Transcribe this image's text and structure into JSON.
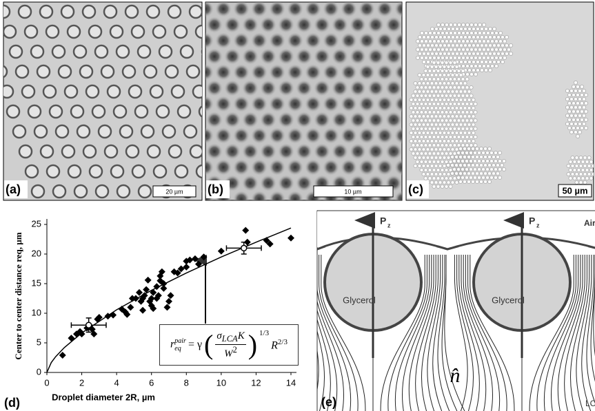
{
  "panels": {
    "a": {
      "label": "(a)",
      "scale": "20 µm"
    },
    "b": {
      "label": "(b)",
      "scale": "10 µm"
    },
    "c": {
      "label": "(c)",
      "scale": "50 µm"
    },
    "d": {
      "label": "(d)"
    },
    "e": {
      "label": "(e)",
      "p": "P",
      "z": "z",
      "air": "Air",
      "glycerol": "Glycerol",
      "n": "n̂",
      "lc": "LC"
    }
  },
  "formula": {
    "lhs": "r",
    "lhs_sub": "eq",
    "lhs_sup": "pair",
    "gamma": "= γ",
    "num": "σ",
    "num_sub": "LCA",
    "num_k": "K",
    "den": "W",
    "den_sup": "2",
    "exp": "1/3",
    "r": "R",
    "r_exp": "2/3"
  },
  "chart_data": {
    "type": "scatter",
    "x_label": "Droplet diameter 2R, µm",
    "y_label": "Center to center distance req, µm",
    "color": "#000000",
    "x": [
      0.9,
      1.4,
      1.7,
      1.9,
      2.0,
      2.3,
      2.6,
      2.7,
      2.9,
      3.0,
      3.5,
      3.8,
      4.3,
      4.5,
      4.6,
      4.8,
      4.9,
      5.1,
      5.3,
      5.4,
      5.5,
      5.5,
      5.6,
      5.7,
      5.8,
      5.9,
      6.0,
      6.0,
      6.1,
      6.1,
      6.3,
      6.3,
      6.4,
      6.5,
      6.5,
      6.6,
      6.7,
      6.7,
      6.9,
      7.0,
      7.1,
      7.3,
      7.5,
      7.7,
      8.0,
      8.0,
      8.2,
      8.5,
      8.7,
      9.0,
      10.0,
      11.4,
      11.5,
      12.6,
      12.8,
      14.0
    ],
    "values": [
      2.9,
      5.8,
      6.5,
      6.9,
      6.5,
      7.5,
      7.3,
      6.5,
      9.0,
      9.3,
      9.5,
      9.7,
      10.7,
      10.2,
      9.8,
      11.0,
      12.5,
      12.5,
      13.5,
      12.0,
      10.5,
      12.5,
      13.0,
      14.0,
      15.6,
      12.0,
      11.3,
      12.5,
      10.8,
      13.5,
      12.5,
      14.5,
      13.0,
      15.5,
      16.3,
      17.0,
      15.0,
      14.2,
      11.0,
      12.0,
      13.0,
      17.0,
      16.8,
      17.5,
      18.8,
      17.8,
      19.0,
      19.2,
      18.3,
      19.5,
      20.5,
      24.0,
      22.0,
      22.3,
      21.7,
      22.7
    ],
    "error_points": [
      {
        "x": 2.4,
        "y": 8.0,
        "xerr": 1.0,
        "yerr": 1.2
      },
      {
        "x": 11.3,
        "y": 21.0,
        "xerr": 1.0,
        "yerr": 1.0
      }
    ],
    "fit": {
      "x": [
        0,
        0.25,
        0.5,
        1,
        2,
        4,
        6,
        8,
        10,
        12,
        14
      ],
      "values": [
        0,
        1.67,
        2.65,
        4.2,
        6.67,
        10.58,
        13.87,
        16.8,
        19.5,
        22.0,
        24.4
      ]
    },
    "xlim": [
      0,
      14
    ],
    "ylim": [
      0,
      25
    ],
    "xticks": [
      0,
      2,
      4,
      6,
      8,
      10,
      12,
      14
    ],
    "yticks": [
      0,
      5,
      10,
      15,
      20,
      25
    ]
  }
}
